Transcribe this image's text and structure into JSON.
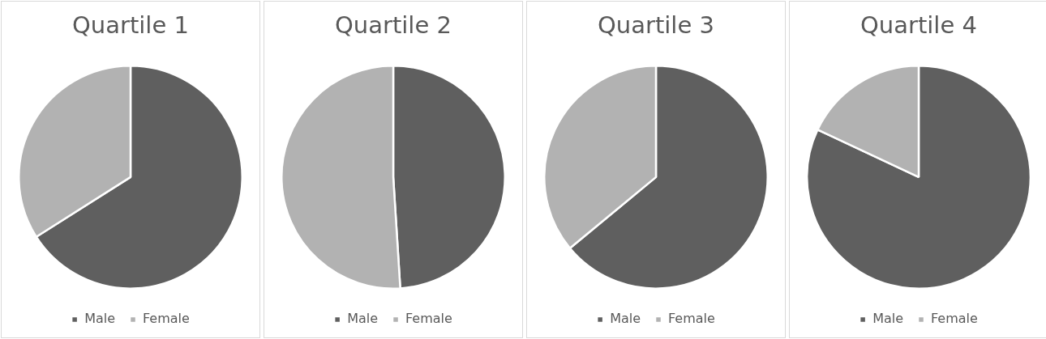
{
  "chart_data": [
    {
      "type": "pie",
      "title": "Quartile 1",
      "categories": [
        "Male",
        "Female"
      ],
      "values": [
        66,
        34
      ],
      "colors": [
        "#5f5f5f",
        "#b2b2b2"
      ],
      "legend": "bottom"
    },
    {
      "type": "pie",
      "title": "Quartile 2",
      "categories": [
        "Male",
        "Female"
      ],
      "values": [
        49,
        51
      ],
      "colors": [
        "#5f5f5f",
        "#b2b2b2"
      ],
      "legend": "bottom"
    },
    {
      "type": "pie",
      "title": "Quartile 3",
      "categories": [
        "Male",
        "Female"
      ],
      "values": [
        64,
        36
      ],
      "colors": [
        "#5f5f5f",
        "#b2b2b2"
      ],
      "legend": "bottom"
    },
    {
      "type": "pie",
      "title": "Quartile 4",
      "categories": [
        "Male",
        "Female"
      ],
      "values": [
        82,
        18
      ],
      "colors": [
        "#5f5f5f",
        "#b2b2b2"
      ],
      "legend": "bottom"
    }
  ]
}
